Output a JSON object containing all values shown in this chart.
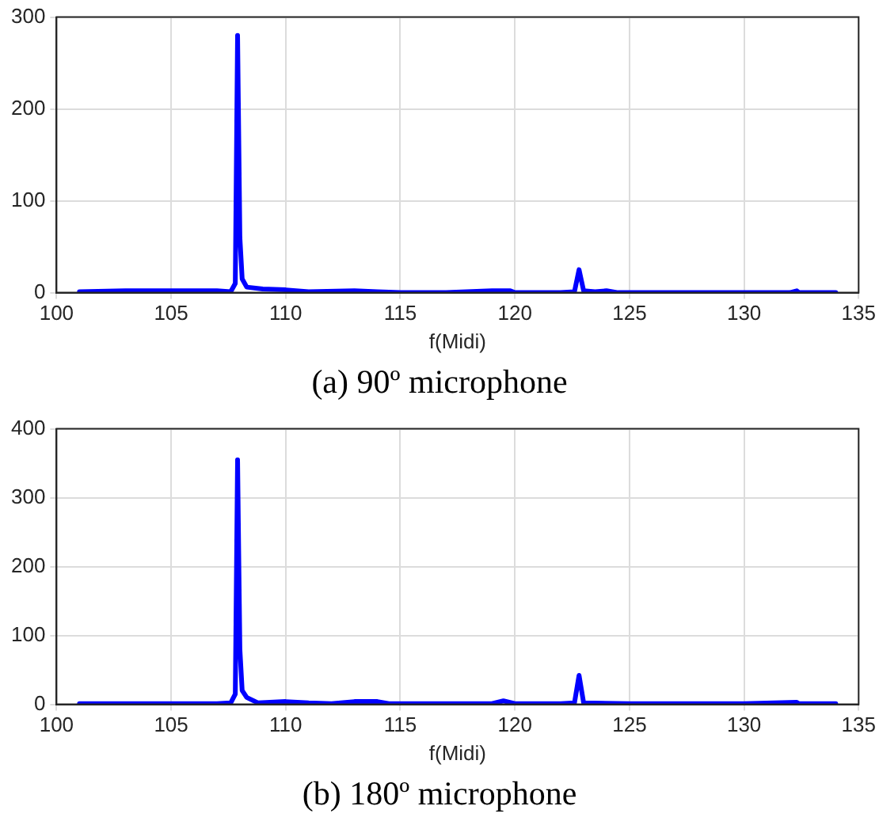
{
  "chart_data": [
    {
      "type": "line",
      "title": "(a) 90º microphone",
      "xlabel": "f(Midi)",
      "xlim": [
        100,
        135
      ],
      "xticks": [
        100,
        105,
        110,
        115,
        120,
        125,
        130,
        135
      ],
      "ylim": [
        0,
        300
      ],
      "yticks": [
        0,
        100,
        200,
        300
      ],
      "grid": true,
      "legend": false,
      "marker": "none",
      "line_style": "solid",
      "series": [
        {
          "color": "#0000ff",
          "x": [
            101,
            103,
            105,
            107,
            107.6,
            107.8,
            107.9,
            108.0,
            108.1,
            108.3,
            109,
            110,
            111,
            113,
            114,
            115,
            117,
            119,
            119.8,
            120,
            122,
            122.6,
            122.8,
            123,
            123.5,
            124,
            124.5,
            128,
            132,
            132.3,
            132.4,
            134
          ],
          "values": [
            1,
            2,
            2,
            2,
            1,
            10,
            280,
            60,
            15,
            6,
            4,
            3,
            1,
            2,
            1,
            0,
            0,
            2,
            2,
            0,
            0,
            1,
            25,
            2,
            1,
            2,
            0,
            0,
            0,
            2,
            0,
            0
          ]
        }
      ]
    },
    {
      "type": "line",
      "title": "(b) 180º microphone",
      "xlabel": "f(Midi)",
      "xlim": [
        100,
        135
      ],
      "xticks": [
        100,
        105,
        110,
        115,
        120,
        125,
        130,
        135
      ],
      "ylim": [
        0,
        400
      ],
      "yticks": [
        0,
        100,
        200,
        300,
        400
      ],
      "grid": true,
      "legend": false,
      "marker": "none",
      "line_style": "solid",
      "series": [
        {
          "color": "#0000ff",
          "x": [
            101,
            105,
            107,
            107.6,
            107.8,
            107.9,
            108.0,
            108.1,
            108.3,
            108.8,
            110,
            111,
            112,
            113,
            114,
            114.5,
            117,
            119,
            119.5,
            120,
            122,
            122.6,
            122.8,
            123,
            125,
            130,
            132.3,
            132.4,
            134
          ],
          "values": [
            1,
            1,
            1,
            2,
            15,
            355,
            80,
            20,
            10,
            2,
            4,
            2,
            1,
            4,
            4,
            1,
            1,
            1,
            5,
            1,
            1,
            2,
            42,
            2,
            1,
            1,
            3,
            1,
            1
          ]
        }
      ]
    }
  ]
}
